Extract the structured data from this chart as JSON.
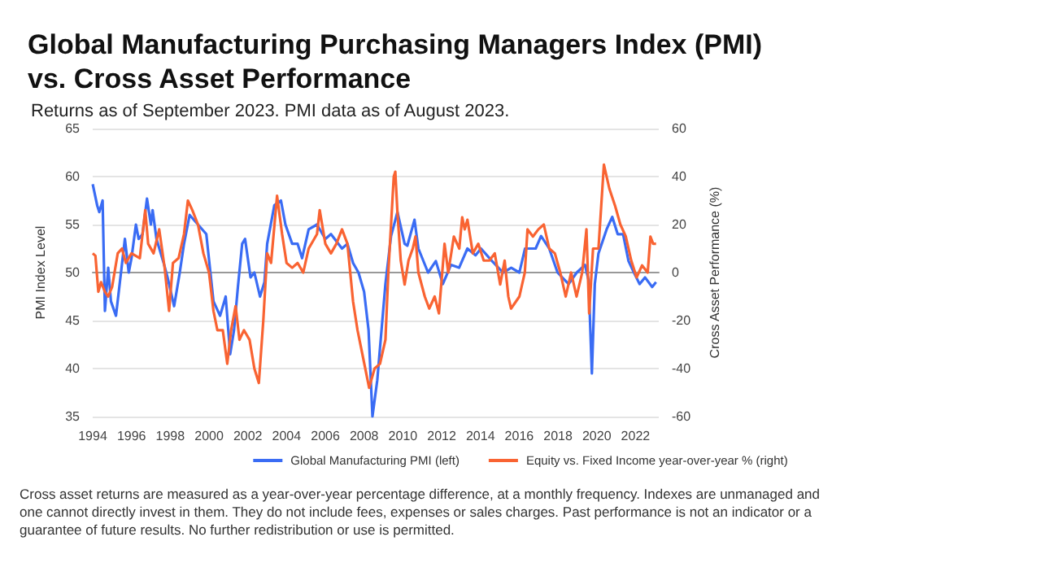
{
  "chart_data": {
    "type": "line",
    "title": "Global Manufacturing Purchasing Managers Index (PMI)\nvs. Cross Asset Performance",
    "subtitle": "Returns as of September 2023. PMI data as of August 2023.",
    "ylabel": "PMI Index Level",
    "y2label": "Cross Asset Performance (%)",
    "xlim": [
      1994,
      2023.2
    ],
    "xticks": [
      1994,
      1996,
      1998,
      2000,
      2002,
      2004,
      2006,
      2008,
      2010,
      2012,
      2014,
      2016,
      2018,
      2020,
      2022
    ],
    "ylim": [
      35,
      65
    ],
    "yticks": [
      35,
      40,
      45,
      50,
      55,
      60,
      65
    ],
    "y2lim": [
      -60,
      60
    ],
    "y2ticks": [
      -60,
      -40,
      -20,
      0,
      20,
      40,
      60
    ],
    "grid": "y",
    "legend": "bottom",
    "series": [
      {
        "name": "Global Manufacturing PMI (left)",
        "color": "#3a6cf4",
        "x": [
          1994.0,
          1994.23,
          1994.34,
          1994.51,
          1994.63,
          1994.8,
          1994.94,
          1995.2,
          1995.66,
          1995.86,
          1996.0,
          1996.23,
          1996.37,
          1996.57,
          1996.8,
          1997.0,
          1997.09,
          1997.29,
          1997.66,
          1997.86,
          1998.2,
          1998.49,
          1998.71,
          1999.0,
          1999.43,
          1999.86,
          2000.23,
          2000.57,
          2000.86,
          2001.09,
          2001.29,
          2001.49,
          2001.71,
          2001.86,
          2002.14,
          2002.34,
          2002.63,
          2002.86,
          2003.0,
          2003.37,
          2003.71,
          2003.94,
          2004.29,
          2004.57,
          2004.8,
          2005.14,
          2005.57,
          2006.0,
          2006.29,
          2006.86,
          2007.14,
          2007.43,
          2007.71,
          2008.0,
          2008.23,
          2008.43,
          2008.68,
          2009.1,
          2009.39,
          2009.72,
          2010.09,
          2010.23,
          2010.6,
          2010.8,
          2011.3,
          2011.7,
          2012.06,
          2012.48,
          2012.9,
          2013.33,
          2013.75,
          2014.03,
          2014.6,
          2015.17,
          2015.59,
          2016.01,
          2016.3,
          2016.85,
          2017.13,
          2017.55,
          2017.98,
          2018.55,
          2018.97,
          2019.39,
          2019.58,
          2019.75,
          2019.9,
          2020.09,
          2020.51,
          2020.8,
          2021.08,
          2021.36,
          2021.64,
          2021.92,
          2022.21,
          2022.49,
          2022.86,
          2023.06
        ],
        "values": [
          59.2,
          57,
          56.3,
          57.5,
          46,
          50.5,
          47,
          45.5,
          53.5,
          50,
          51.5,
          55,
          53.5,
          54,
          57.7,
          55,
          56.5,
          53.5,
          51,
          49.5,
          46.5,
          50,
          53,
          56,
          55,
          54,
          47,
          45.5,
          47.5,
          41.5,
          44,
          48.5,
          53,
          53.5,
          49.5,
          50,
          47.5,
          49,
          53,
          57,
          57.5,
          55,
          53,
          53,
          51.5,
          54.5,
          55,
          53.5,
          54,
          52.5,
          53,
          51,
          50,
          48,
          44,
          35,
          38.8,
          48.8,
          53.8,
          56.3,
          53,
          52.8,
          55.5,
          52.5,
          50,
          51.2,
          48.8,
          50.8,
          50.5,
          52.5,
          51.8,
          52.5,
          51.2,
          50,
          50.5,
          50,
          52.5,
          52.5,
          53.8,
          52.5,
          50,
          48.8,
          50,
          50.8,
          49.2,
          39.5,
          48.8,
          52,
          54.5,
          55.8,
          54,
          54,
          51.2,
          50,
          48.8,
          49.5,
          48.5,
          49
        ]
      },
      {
        "name": "Equity vs. Fixed Income year-over-year % (right)",
        "color": "#f96332",
        "axis": "y2",
        "x": [
          1994.0,
          1994.14,
          1994.29,
          1994.43,
          1994.63,
          1994.8,
          1995.0,
          1995.29,
          1995.51,
          1995.71,
          1996.0,
          1996.43,
          1996.71,
          1996.86,
          1997.14,
          1997.43,
          1997.71,
          1997.94,
          1998.14,
          1998.43,
          1998.71,
          1998.91,
          1999.14,
          1999.43,
          1999.71,
          2000.0,
          2000.23,
          2000.43,
          2000.71,
          2000.94,
          2001.14,
          2001.37,
          2001.57,
          2001.8,
          2002.09,
          2002.34,
          2002.57,
          2002.8,
          2003.0,
          2003.2,
          2003.51,
          2003.77,
          2004.0,
          2004.29,
          2004.57,
          2004.86,
          2005.14,
          2005.57,
          2005.71,
          2006.0,
          2006.29,
          2006.57,
          2006.86,
          2007.14,
          2007.43,
          2007.66,
          2007.86,
          2008.26,
          2008.54,
          2008.82,
          2009.1,
          2009.25,
          2009.39,
          2009.53,
          2009.61,
          2009.72,
          2009.89,
          2010.09,
          2010.29,
          2010.51,
          2010.65,
          2010.8,
          2011.13,
          2011.36,
          2011.64,
          2011.86,
          2012.15,
          2012.34,
          2012.63,
          2012.91,
          2013.06,
          2013.19,
          2013.33,
          2013.61,
          2013.89,
          2014.17,
          2014.46,
          2014.74,
          2015.02,
          2015.25,
          2015.44,
          2015.58,
          2016.01,
          2016.29,
          2016.43,
          2016.71,
          2016.99,
          2017.27,
          2017.55,
          2017.84,
          2018.12,
          2018.4,
          2018.68,
          2018.96,
          2019.25,
          2019.47,
          2019.61,
          2019.81,
          2020.09,
          2020.37,
          2020.65,
          2020.94,
          2021.22,
          2021.5,
          2021.78,
          2022.06,
          2022.34,
          2022.63,
          2022.77,
          2022.91,
          2023.06
        ],
        "values": [
          8,
          7,
          -8,
          -4,
          -8,
          -10,
          -6,
          8,
          10,
          4,
          8,
          6,
          26,
          12,
          8,
          18,
          2,
          -16,
          4,
          6,
          16,
          30,
          26,
          20,
          8,
          0,
          -16,
          -24,
          -24,
          -38,
          -24,
          -14,
          -28,
          -24,
          -28,
          -40,
          -46,
          -20,
          8,
          4,
          32,
          16,
          4,
          2,
          4,
          0,
          10,
          16,
          26,
          12,
          8,
          12,
          18,
          12,
          -12,
          -24,
          -32,
          -48,
          -40,
          -38,
          -28,
          0,
          20,
          40,
          42,
          25,
          5,
          -5,
          5,
          10,
          15,
          0,
          -10,
          -15,
          -10,
          -17,
          12,
          0,
          15,
          10,
          23,
          18,
          22,
          8,
          12,
          5,
          5,
          8,
          -5,
          5,
          -10,
          -15,
          -10,
          0,
          18,
          15,
          18,
          20,
          10,
          8,
          0,
          -10,
          0,
          -10,
          0,
          18,
          -17,
          10,
          10,
          45,
          35,
          28,
          20,
          15,
          5,
          -2,
          3,
          0,
          15,
          12,
          12
        ]
      }
    ],
    "annotations": [
      "Cross asset returns are measured as a year-over-year percentage difference, at a monthly frequency. Indexes are unmanaged and one cannot directly invest in them. They do not include fees, expenses or sales charges. Past performance is not an indicator or a guarantee of future results. No further redistribution or use is permitted."
    ]
  }
}
